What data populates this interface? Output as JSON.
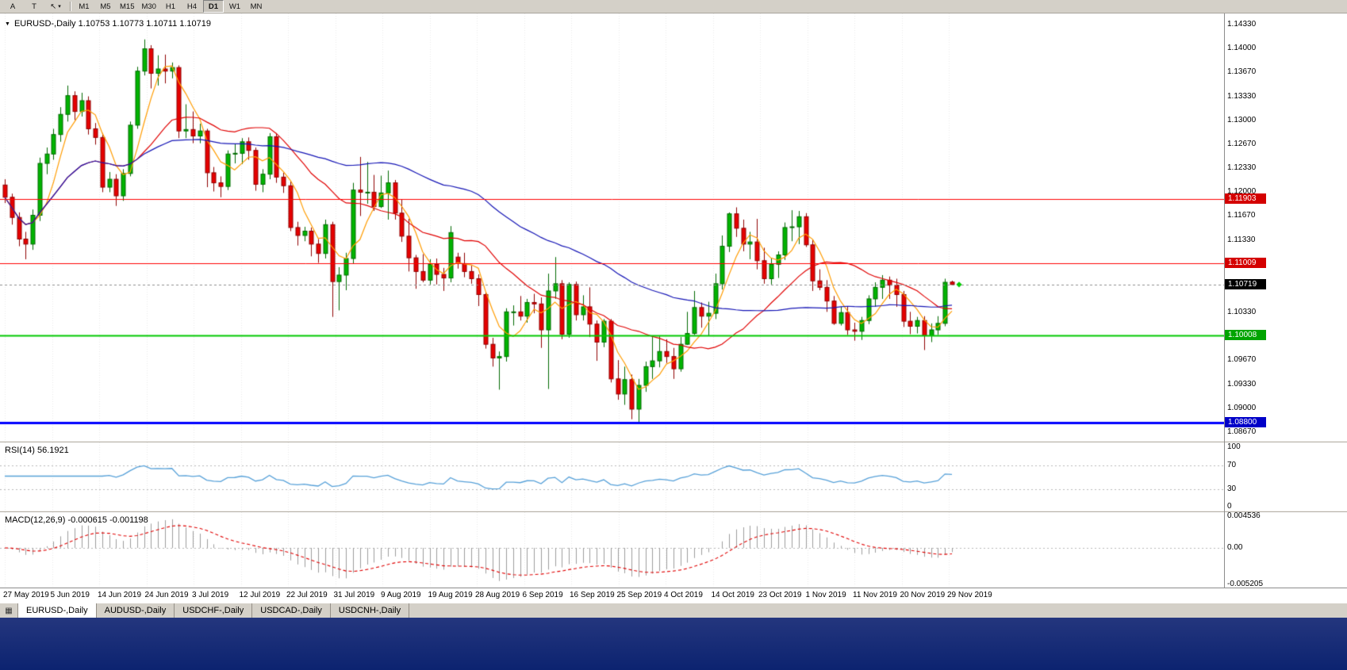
{
  "toolbar": {
    "left_buttons": [
      "A",
      "T"
    ],
    "timeframes": [
      "M1",
      "M5",
      "M15",
      "M30",
      "H1",
      "H4",
      "D1",
      "W1",
      "MN"
    ],
    "selected_timeframe": "D1"
  },
  "icons": {
    "chart_caret": "▼",
    "tool_caret": "▾",
    "cursor": "↖",
    "windows": "▦"
  },
  "chart": {
    "symbol": "EURUSD-,Daily",
    "info_line": "EURUSD-,Daily 1.10753 1.10773 1.10711 1.10719",
    "ohlc_current": {
      "open": "1.10753",
      "high": "1.10773",
      "low": "1.10711",
      "close": "1.10719"
    }
  },
  "price_axis": {
    "labels": [
      {
        "text": "1.14330",
        "value": 1.1433
      },
      {
        "text": "1.14000",
        "value": 1.14
      },
      {
        "text": "1.13670",
        "value": 1.1367
      },
      {
        "text": "1.13330",
        "value": 1.1333
      },
      {
        "text": "1.13000",
        "value": 1.13
      },
      {
        "text": "1.12670",
        "value": 1.1267
      },
      {
        "text": "1.12330",
        "value": 1.1233
      },
      {
        "text": "1.12000",
        "value": 1.12
      },
      {
        "text": "1.11670",
        "value": 1.1167
      },
      {
        "text": "1.11330",
        "value": 1.1133
      },
      {
        "text": "1.10330",
        "value": 1.1033
      },
      {
        "text": "1.09670",
        "value": 1.0967
      },
      {
        "text": "1.09330",
        "value": 1.0933
      },
      {
        "text": "1.09000",
        "value": 1.09
      },
      {
        "text": "1.08670",
        "value": 1.0867
      }
    ]
  },
  "hlines": [
    {
      "label": "1.11903",
      "value": 1.11903,
      "line_color": "#ff0000",
      "badge_bg": "#d40000",
      "width": 1
    },
    {
      "label": "1.11009",
      "value": 1.11009,
      "line_color": "#ff0000",
      "badge_bg": "#d40000",
      "width": 1
    },
    {
      "label": "1.10719",
      "value": 1.10719,
      "line_color": "#8c8c8c",
      "badge_bg": "#000000",
      "width": 1,
      "type": "current"
    },
    {
      "label": "1.10008",
      "value": 1.10008,
      "line_color": "#00c800",
      "badge_bg": "#00a400",
      "width": 2
    },
    {
      "label": "1.08800",
      "value": 1.088,
      "line_color": "#0000ff",
      "badge_bg": "#0000c8",
      "width": 3
    }
  ],
  "date_axis": [
    "27 May 2019",
    "5 Jun 2019",
    "14 Jun 2019",
    "24 Jun 2019",
    "3 Jul 2019",
    "12 Jul 2019",
    "22 Jul 2019",
    "31 Jul 2019",
    "9 Aug 2019",
    "19 Aug 2019",
    "28 Aug 2019",
    "6 Sep 2019",
    "16 Sep 2019",
    "25 Sep 2019",
    "4 Oct 2019",
    "14 Oct 2019",
    "23 Oct 2019",
    "1 Nov 2019",
    "11 Nov 2019",
    "20 Nov 2019",
    "29 Nov 2019"
  ],
  "rsi": {
    "label": "RSI(14) 56.1921",
    "name": "RSI(14)",
    "value": "56.1921",
    "period": 14,
    "line_color": "#56a0d8",
    "levels": [
      70,
      30
    ],
    "axis": [
      {
        "text": "100",
        "value": 100
      },
      {
        "text": "70",
        "value": 70
      },
      {
        "text": "30",
        "value": 30
      },
      {
        "text": "0",
        "value": 0
      }
    ]
  },
  "macd": {
    "label": "MACD(12,26,9) -0.000615 -0.001198",
    "name": "MACD(12,26,9)",
    "main_value": "-0.000615",
    "signal_value": "-0.001198",
    "histogram_color": "#9c9c9c",
    "signal_color": "#e00000",
    "axis": [
      {
        "text": "0.004536",
        "value": 0.004536
      },
      {
        "text": "0.00",
        "value": 0.0
      },
      {
        "text": "-0.005205",
        "value": -0.005205
      }
    ]
  },
  "tabs": {
    "items": [
      "EURUSD-,Daily",
      "AUDUSD-,Daily",
      "USDCHF-,Daily",
      "USDCAD-,Daily",
      "USDCNH-,Daily"
    ],
    "active": "EURUSD-,Daily"
  },
  "last_bar_marker": {
    "color": "#00cc00"
  },
  "colors": {
    "toolbar_bg": "#d4d0c8",
    "chart_bg": "#ffffff",
    "bull": "#00b400",
    "bull_edge": "#006a00",
    "bear": "#e60000",
    "bear_edge": "#8f0000",
    "grid": "#e9e9e9",
    "level_dots": "#b8b8b8",
    "axis_text": "#000000",
    "taskbar": "#0c2370"
  },
  "chart_data": {
    "type": "candlestick",
    "symbol": "EURUSD",
    "timeframe": "Daily",
    "title": "EURUSD-,Daily",
    "current_price": 1.10719,
    "price_range": [
      1.0855,
      1.1448
    ],
    "x_labels": [
      "27 May 2019",
      "5 Jun 2019",
      "14 Jun 2019",
      "24 Jun 2019",
      "3 Jul 2019",
      "12 Jul 2019",
      "22 Jul 2019",
      "31 Jul 2019",
      "9 Aug 2019",
      "19 Aug 2019",
      "28 Aug 2019",
      "6 Sep 2019",
      "16 Sep 2019",
      "25 Sep 2019",
      "4 Oct 2019",
      "14 Oct 2019",
      "23 Oct 2019",
      "1 Nov 2019",
      "11 Nov 2019",
      "20 Nov 2019",
      "29 Nov 2019"
    ],
    "horizontal_lines": [
      1.11903,
      1.11009,
      1.10008,
      1.088
    ],
    "moving_averages": [
      {
        "period": 5,
        "color": "#ff9c00"
      },
      {
        "period": 20,
        "color": "#e00000"
      },
      {
        "period": 50,
        "color": "#1515b5"
      }
    ],
    "indicators": [
      {
        "name": "RSI",
        "params": [
          14
        ],
        "last": 56.1921
      },
      {
        "name": "MACD",
        "params": [
          12,
          26,
          9
        ],
        "last_main": -0.000615,
        "last_signal": -0.001198
      }
    ],
    "candles": [
      [
        1.121,
        1.1218,
        1.1185,
        1.1193
      ],
      [
        1.1193,
        1.1198,
        1.1155,
        1.1165
      ],
      [
        1.1165,
        1.1172,
        1.1125,
        1.1135
      ],
      [
        1.1135,
        1.1145,
        1.1107,
        1.1128
      ],
      [
        1.1128,
        1.1176,
        1.112,
        1.1168
      ],
      [
        1.1168,
        1.1248,
        1.116,
        1.124
      ],
      [
        1.124,
        1.1262,
        1.1225,
        1.1253
      ],
      [
        1.1253,
        1.1288,
        1.1245,
        1.128
      ],
      [
        1.128,
        1.1318,
        1.127,
        1.1308
      ],
      [
        1.1308,
        1.1348,
        1.1298,
        1.1334
      ],
      [
        1.1334,
        1.134,
        1.13,
        1.1312
      ],
      [
        1.1312,
        1.1338,
        1.1305,
        1.1327
      ],
      [
        1.1327,
        1.1333,
        1.128,
        1.1288
      ],
      [
        1.1288,
        1.1296,
        1.1266,
        1.1276
      ],
      [
        1.1276,
        1.1282,
        1.12,
        1.1207
      ],
      [
        1.1207,
        1.1228,
        1.12,
        1.1218
      ],
      [
        1.1218,
        1.1225,
        1.1181,
        1.1195
      ],
      [
        1.1195,
        1.1232,
        1.1188,
        1.1226
      ],
      [
        1.1226,
        1.1298,
        1.1222,
        1.1293
      ],
      [
        1.1293,
        1.1374,
        1.1288,
        1.1368
      ],
      [
        1.1368,
        1.1412,
        1.1362,
        1.1399
      ],
      [
        1.1399,
        1.1404,
        1.1344,
        1.1365
      ],
      [
        1.1365,
        1.139,
        1.1348,
        1.1371
      ],
      [
        1.1371,
        1.1391,
        1.1351,
        1.1368
      ],
      [
        1.1368,
        1.138,
        1.1358,
        1.1373
      ],
      [
        1.1373,
        1.1376,
        1.1275,
        1.1285
      ],
      [
        1.1285,
        1.1322,
        1.1275,
        1.1287
      ],
      [
        1.1287,
        1.1312,
        1.1268,
        1.1278
      ],
      [
        1.1278,
        1.1295,
        1.1268,
        1.1285
      ],
      [
        1.1285,
        1.1288,
        1.1207,
        1.1227
      ],
      [
        1.1227,
        1.1235,
        1.1201,
        1.1213
      ],
      [
        1.1213,
        1.1222,
        1.1193,
        1.1208
      ],
      [
        1.1208,
        1.1258,
        1.1203,
        1.1253
      ],
      [
        1.1253,
        1.1267,
        1.124,
        1.1254
      ],
      [
        1.1254,
        1.1275,
        1.1239,
        1.127
      ],
      [
        1.127,
        1.1276,
        1.1245,
        1.1258
      ],
      [
        1.1258,
        1.1262,
        1.1202,
        1.1211
      ],
      [
        1.1211,
        1.1232,
        1.12,
        1.1225
      ],
      [
        1.1225,
        1.1282,
        1.1218,
        1.1277
      ],
      [
        1.1277,
        1.1282,
        1.1213,
        1.1221
      ],
      [
        1.1221,
        1.1227,
        1.1199,
        1.1209
      ],
      [
        1.1209,
        1.1215,
        1.1146,
        1.1151
      ],
      [
        1.1151,
        1.1159,
        1.1126,
        1.114
      ],
      [
        1.114,
        1.1152,
        1.1132,
        1.1146
      ],
      [
        1.1146,
        1.1151,
        1.1111,
        1.1128
      ],
      [
        1.1128,
        1.1135,
        1.1102,
        1.1115
      ],
      [
        1.1115,
        1.1162,
        1.1108,
        1.1155
      ],
      [
        1.1155,
        1.1159,
        1.1027,
        1.1076
      ],
      [
        1.1076,
        1.1096,
        1.1036,
        1.1085
      ],
      [
        1.1085,
        1.1116,
        1.1064,
        1.1108
      ],
      [
        1.1108,
        1.1213,
        1.1101,
        1.1203
      ],
      [
        1.1203,
        1.1249,
        1.1167,
        1.12
      ],
      [
        1.12,
        1.1242,
        1.1184,
        1.12
      ],
      [
        1.12,
        1.1224,
        1.1174,
        1.118
      ],
      [
        1.118,
        1.1223,
        1.1178,
        1.1199
      ],
      [
        1.1199,
        1.123,
        1.1162,
        1.1213
      ],
      [
        1.1213,
        1.1217,
        1.1162,
        1.1171
      ],
      [
        1.1171,
        1.119,
        1.1131,
        1.1139
      ],
      [
        1.1139,
        1.1163,
        1.109,
        1.1109
      ],
      [
        1.1109,
        1.1113,
        1.1066,
        1.109
      ],
      [
        1.109,
        1.1114,
        1.1075,
        1.1078
      ],
      [
        1.1078,
        1.1107,
        1.1072,
        1.11
      ],
      [
        1.11,
        1.1108,
        1.1072,
        1.1086
      ],
      [
        1.1086,
        1.1095,
        1.1063,
        1.1081
      ],
      [
        1.1081,
        1.1153,
        1.1075,
        1.1144
      ],
      [
        1.111,
        1.1116,
        1.1094,
        1.1101
      ],
      [
        1.1101,
        1.1116,
        1.1082,
        1.109
      ],
      [
        1.109,
        1.1098,
        1.1073,
        1.108
      ],
      [
        1.108,
        1.1086,
        1.1042,
        1.1058
      ],
      [
        1.1058,
        1.1061,
        1.0983,
        1.0989
      ],
      [
        1.0989,
        1.0998,
        1.0958,
        1.097
      ],
      [
        1.097,
        1.0979,
        1.0926,
        1.0972
      ],
      [
        1.0972,
        1.1039,
        1.0965,
        1.1034
      ],
      [
        1.1034,
        1.1043,
        1.1015,
        1.1034
      ],
      [
        1.1034,
        1.1056,
        1.1022,
        1.1028
      ],
      [
        1.1028,
        1.1052,
        1.1019,
        1.1047
      ],
      [
        1.1047,
        1.1059,
        1.1032,
        1.1045
      ],
      [
        1.1045,
        1.1054,
        1.0984,
        1.1009
      ],
      [
        1.1009,
        1.1087,
        1.0927,
        1.1063
      ],
      [
        1.1063,
        1.111,
        1.1052,
        1.1073
      ],
      [
        1.1073,
        1.1078,
        1.0996,
        1.1003
      ],
      [
        1.1003,
        1.1075,
        1.0998,
        1.1072
      ],
      [
        1.1072,
        1.1076,
        1.1022,
        1.103
      ],
      [
        1.103,
        1.1057,
        1.1022,
        1.1041
      ],
      [
        1.1041,
        1.1068,
        1.0999,
        1.1017
      ],
      [
        1.1017,
        1.1022,
        1.0966,
        1.0992
      ],
      [
        1.0992,
        1.1024,
        1.0985,
        1.1021
      ],
      [
        1.1021,
        1.1024,
        1.0936,
        1.0941
      ],
      [
        1.0941,
        1.0967,
        1.0912,
        1.092
      ],
      [
        1.092,
        1.0958,
        1.0905,
        1.094
      ],
      [
        1.094,
        1.0947,
        1.0885,
        1.0899
      ],
      [
        1.0899,
        1.0941,
        1.0879,
        1.0932
      ],
      [
        1.0932,
        1.0965,
        1.0923,
        1.0958
      ],
      [
        1.0958,
        1.0999,
        1.0941,
        1.0966
      ],
      [
        1.0966,
        1.1,
        1.0957,
        1.0979
      ],
      [
        1.0979,
        1.0996,
        1.0963,
        1.0972
      ],
      [
        1.0972,
        1.0984,
        1.0941,
        1.0955
      ],
      [
        1.0955,
        1.0999,
        1.0951,
        1.0989
      ],
      [
        1.0989,
        1.1034,
        1.0988,
        1.1004
      ],
      [
        1.1004,
        1.1063,
        1.1002,
        1.104
      ],
      [
        1.104,
        1.1047,
        1.1012,
        1.1028
      ],
      [
        1.1028,
        1.1048,
        1.1001,
        1.1032
      ],
      [
        1.1032,
        1.1087,
        1.1024,
        1.1073
      ],
      [
        1.1073,
        1.114,
        1.1065,
        1.1125
      ],
      [
        1.1125,
        1.1172,
        1.1117,
        1.117
      ],
      [
        1.117,
        1.1179,
        1.1138,
        1.115
      ],
      [
        1.115,
        1.1162,
        1.1118,
        1.1128
      ],
      [
        1.1128,
        1.1145,
        1.1107,
        1.1131
      ],
      [
        1.1131,
        1.1163,
        1.1093,
        1.1105
      ],
      [
        1.1105,
        1.1123,
        1.1073,
        1.108
      ],
      [
        1.108,
        1.1108,
        1.1072,
        1.11
      ],
      [
        1.11,
        1.1118,
        1.1081,
        1.1113
      ],
      [
        1.1113,
        1.1158,
        1.1106,
        1.1151
      ],
      [
        1.1151,
        1.1175,
        1.1132,
        1.1152
      ],
      [
        1.1152,
        1.1174,
        1.1128,
        1.1166
      ],
      [
        1.1166,
        1.1171,
        1.1124,
        1.1127
      ],
      [
        1.1127,
        1.1134,
        1.1063,
        1.1077
      ],
      [
        1.1077,
        1.1093,
        1.1064,
        1.1068
      ],
      [
        1.1068,
        1.1078,
        1.1034,
        1.1049
      ],
      [
        1.1049,
        1.1056,
        1.1016,
        1.1018
      ],
      [
        1.1018,
        1.1041,
        1.1015,
        1.1033
      ],
      [
        1.1033,
        1.1042,
        1.1002,
        1.1009
      ],
      [
        1.1009,
        1.1019,
        1.0994,
        1.1007
      ],
      [
        1.1007,
        1.1027,
        1.0995,
        1.1022
      ],
      [
        1.1022,
        1.1057,
        1.1017,
        1.1052
      ],
      [
        1.1052,
        1.1075,
        1.1041,
        1.1068
      ],
      [
        1.1068,
        1.1085,
        1.1052,
        1.1078
      ],
      [
        1.1078,
        1.1083,
        1.1052,
        1.1071
      ],
      [
        1.1071,
        1.108,
        1.1041,
        1.1058
      ],
      [
        1.1058,
        1.1063,
        1.1013,
        1.1021
      ],
      [
        1.1021,
        1.1034,
        1.1003,
        1.1014
      ],
      [
        1.1014,
        1.1027,
        1.1004,
        1.1022
      ],
      [
        1.1022,
        1.1028,
        1.0981,
        1.1001
      ],
      [
        1.1001,
        1.1018,
        1.0992,
        1.1009
      ],
      [
        1.1009,
        1.1028,
        1.1002,
        1.1018
      ],
      [
        1.1018,
        1.108,
        1.1014,
        1.1075
      ],
      [
        1.10753,
        1.10773,
        1.10711,
        1.10719
      ]
    ]
  }
}
